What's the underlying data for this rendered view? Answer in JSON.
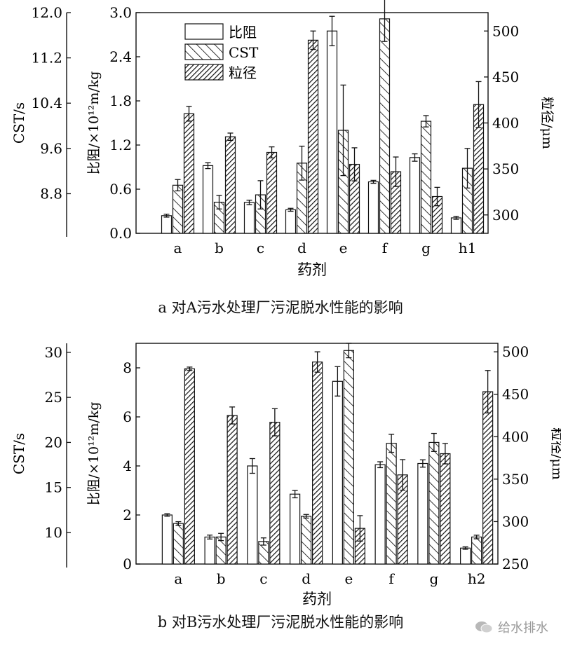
{
  "chart_data": [
    {
      "type": "bar",
      "caption": "a 对A污水处理厂污泥脱水性能的影响",
      "categories": [
        "a",
        "b",
        "c",
        "d",
        "e",
        "f",
        "g",
        "h1"
      ],
      "xlabel": "药剂",
      "ylabel_left_outer": "CST/s",
      "ylabel_left_inner": "比阻/×10¹²m/kg",
      "ylabel_right": "粒径/μm",
      "axes": {
        "left_inner": {
          "ylim": [
            0,
            3.0
          ],
          "ticks": [
            "0.0",
            "0.6",
            "1.2",
            "1.8",
            "2.4",
            "3.0"
          ]
        },
        "left_outer": {
          "ylim": [
            8.1,
            12.0
          ],
          "ticks": [
            "8.8",
            "9.6",
            "10.4",
            "11.2",
            "12.0"
          ]
        },
        "right": {
          "ylim": [
            280,
            520
          ],
          "ticks": [
            "300",
            "350",
            "400",
            "450",
            "500"
          ]
        }
      },
      "legend": {
        "placement": "top-left",
        "entries": [
          "比阻",
          "CST",
          "粒径"
        ]
      },
      "series": [
        {
          "name": "比阻",
          "axis": "left_inner",
          "pattern": "open",
          "values": [
            0.24,
            0.92,
            0.42,
            0.32,
            2.75,
            0.7,
            1.03,
            0.21
          ],
          "errors": [
            0.02,
            0.04,
            0.03,
            0.02,
            0.2,
            0.02,
            0.05,
            0.02
          ]
        },
        {
          "name": "CST",
          "axis": "left_outer",
          "pattern": "back-hatch",
          "values": [
            8.95,
            8.65,
            8.78,
            9.34,
            9.92,
            11.89,
            10.08,
            9.25
          ],
          "errors": [
            0.1,
            0.12,
            0.25,
            0.3,
            0.8,
            0.4,
            0.1,
            0.35
          ]
        },
        {
          "name": "粒径",
          "axis": "right",
          "pattern": "dense-hatch",
          "values": [
            410,
            385,
            368,
            490,
            355,
            347,
            320,
            420
          ],
          "errors": [
            8,
            4,
            6,
            10,
            18,
            16,
            10,
            25
          ]
        }
      ]
    },
    {
      "type": "bar",
      "caption": "b 对B污水处理厂污泥脱水性能的影响",
      "categories": [
        "a",
        "b",
        "c",
        "d",
        "e",
        "f",
        "g",
        "h2"
      ],
      "xlabel": "药剂",
      "ylabel_left_outer": "CST/s",
      "ylabel_left_inner": "比阻/×10¹²m/kg",
      "ylabel_right": "粒径/μm",
      "axes": {
        "left_inner": {
          "ylim": [
            0,
            9.0
          ],
          "ticks": [
            "0",
            "2",
            "4",
            "6",
            "8"
          ]
        },
        "left_outer": {
          "ylim": [
            6.5,
            31.0
          ],
          "ticks": [
            "10",
            "15",
            "20",
            "25",
            "30"
          ]
        },
        "right": {
          "ylim": [
            250,
            510
          ],
          "ticks": [
            "250",
            "300",
            "350",
            "400",
            "450",
            "500"
          ]
        }
      },
      "series": [
        {
          "name": "比阻",
          "axis": "left_inner",
          "pattern": "open",
          "values": [
            2.0,
            1.1,
            4.0,
            2.85,
            7.45,
            4.05,
            4.1,
            0.65
          ],
          "errors": [
            0.05,
            0.08,
            0.3,
            0.15,
            0.6,
            0.12,
            0.15,
            0.05
          ]
        },
        {
          "name": "CST",
          "axis": "left_outer",
          "pattern": "back-hatch",
          "values": [
            11.0,
            9.5,
            9.0,
            11.8,
            30.2,
            19.9,
            20.0,
            9.5
          ],
          "errors": [
            0.2,
            0.4,
            0.4,
            0.2,
            0.8,
            1.0,
            1.0,
            0.2
          ]
        },
        {
          "name": "粒径",
          "axis": "right",
          "pattern": "dense-hatch",
          "values": [
            480,
            425,
            417,
            488,
            292,
            355,
            380,
            453
          ],
          "errors": [
            2,
            10,
            16,
            12,
            15,
            18,
            12,
            25
          ]
        }
      ]
    }
  ],
  "watermark": {
    "text": "给水排水"
  }
}
